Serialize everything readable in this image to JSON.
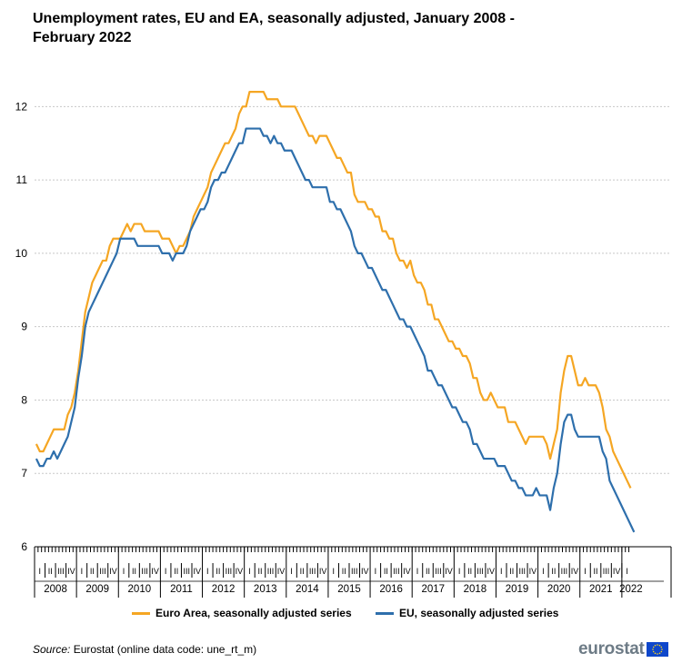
{
  "chart_data": {
    "type": "line",
    "title": "Unemployment rates, EU and EA, seasonally adjusted, January 2008 - February 2022",
    "x_start": "2008-01",
    "x_end": "2022-02",
    "years": [
      "2008",
      "2009",
      "2010",
      "2011",
      "2012",
      "2013",
      "2014",
      "2015",
      "2016",
      "2017",
      "2018",
      "2019",
      "2020",
      "2021",
      "2022"
    ],
    "quarter_labels": [
      "I",
      "II",
      "III",
      "IV"
    ],
    "ylim": [
      6,
      12.4
    ],
    "yticks": [
      6,
      7,
      8,
      9,
      10,
      11,
      12
    ],
    "grid": true,
    "legend_position": "bottom",
    "series": [
      {
        "name": "Euro Area, seasonally adjusted series",
        "color": "#f5a623",
        "values": [
          7.4,
          7.3,
          7.3,
          7.4,
          7.5,
          7.6,
          7.6,
          7.6,
          7.6,
          7.8,
          7.9,
          8.1,
          8.4,
          8.8,
          9.2,
          9.4,
          9.6,
          9.7,
          9.8,
          9.9,
          9.9,
          10.1,
          10.2,
          10.2,
          10.2,
          10.3,
          10.4,
          10.3,
          10.4,
          10.4,
          10.4,
          10.3,
          10.3,
          10.3,
          10.3,
          10.3,
          10.2,
          10.2,
          10.2,
          10.1,
          10.0,
          10.1,
          10.1,
          10.2,
          10.3,
          10.5,
          10.6,
          10.7,
          10.8,
          10.9,
          11.1,
          11.2,
          11.3,
          11.4,
          11.5,
          11.5,
          11.6,
          11.7,
          11.9,
          12.0,
          12.0,
          12.2,
          12.2,
          12.2,
          12.2,
          12.2,
          12.1,
          12.1,
          12.1,
          12.1,
          12.0,
          12.0,
          12.0,
          12.0,
          12.0,
          11.9,
          11.8,
          11.7,
          11.6,
          11.6,
          11.5,
          11.6,
          11.6,
          11.6,
          11.5,
          11.4,
          11.3,
          11.3,
          11.2,
          11.1,
          11.1,
          10.8,
          10.7,
          10.7,
          10.7,
          10.6,
          10.6,
          10.5,
          10.5,
          10.3,
          10.3,
          10.2,
          10.2,
          10.0,
          9.9,
          9.9,
          9.8,
          9.9,
          9.7,
          9.6,
          9.6,
          9.5,
          9.3,
          9.3,
          9.1,
          9.1,
          9.0,
          8.9,
          8.8,
          8.8,
          8.7,
          8.7,
          8.6,
          8.6,
          8.5,
          8.3,
          8.3,
          8.1,
          8.0,
          8.0,
          8.1,
          8.0,
          7.9,
          7.9,
          7.9,
          7.7,
          7.7,
          7.7,
          7.6,
          7.5,
          7.4,
          7.5,
          7.5,
          7.5,
          7.5,
          7.5,
          7.4,
          7.2,
          7.4,
          7.6,
          8.1,
          8.4,
          8.6,
          8.6,
          8.4,
          8.2,
          8.2,
          8.3,
          8.2,
          8.2,
          8.2,
          8.1,
          7.9,
          7.6,
          7.5,
          7.3,
          7.2,
          7.1,
          7.0,
          6.9,
          6.8
        ]
      },
      {
        "name": "EU, seasonally adjusted series",
        "color": "#2e6fac",
        "values": [
          7.2,
          7.1,
          7.1,
          7.2,
          7.2,
          7.3,
          7.2,
          7.3,
          7.4,
          7.5,
          7.7,
          7.9,
          8.3,
          8.6,
          9.0,
          9.2,
          9.3,
          9.4,
          9.5,
          9.6,
          9.7,
          9.8,
          9.9,
          10.0,
          10.2,
          10.2,
          10.2,
          10.2,
          10.2,
          10.1,
          10.1,
          10.1,
          10.1,
          10.1,
          10.1,
          10.1,
          10.0,
          10.0,
          10.0,
          9.9,
          10.0,
          10.0,
          10.0,
          10.1,
          10.3,
          10.4,
          10.5,
          10.6,
          10.6,
          10.7,
          10.9,
          11.0,
          11.0,
          11.1,
          11.1,
          11.2,
          11.3,
          11.4,
          11.5,
          11.5,
          11.7,
          11.7,
          11.7,
          11.7,
          11.7,
          11.6,
          11.6,
          11.5,
          11.6,
          11.5,
          11.5,
          11.4,
          11.4,
          11.4,
          11.3,
          11.2,
          11.1,
          11.0,
          11.0,
          10.9,
          10.9,
          10.9,
          10.9,
          10.9,
          10.7,
          10.7,
          10.6,
          10.6,
          10.5,
          10.4,
          10.3,
          10.1,
          10.0,
          10.0,
          9.9,
          9.8,
          9.8,
          9.7,
          9.6,
          9.5,
          9.5,
          9.4,
          9.3,
          9.2,
          9.1,
          9.1,
          9.0,
          9.0,
          8.9,
          8.8,
          8.7,
          8.6,
          8.4,
          8.4,
          8.3,
          8.2,
          8.2,
          8.1,
          8.0,
          7.9,
          7.9,
          7.8,
          7.7,
          7.7,
          7.6,
          7.4,
          7.4,
          7.3,
          7.2,
          7.2,
          7.2,
          7.2,
          7.1,
          7.1,
          7.1,
          7.0,
          6.9,
          6.9,
          6.8,
          6.8,
          6.7,
          6.7,
          6.7,
          6.8,
          6.7,
          6.7,
          6.7,
          6.5,
          6.8,
          7.0,
          7.4,
          7.7,
          7.8,
          7.8,
          7.6,
          7.5,
          7.5,
          7.5,
          7.5,
          7.5,
          7.5,
          7.5,
          7.3,
          7.2,
          6.9,
          6.8,
          6.7,
          6.6,
          6.5,
          6.4,
          6.3,
          6.2
        ]
      }
    ],
    "source_label": "Source:",
    "source_text": " Eurostat (online data code: une_rt_m)",
    "logo_text": "eurostat"
  }
}
